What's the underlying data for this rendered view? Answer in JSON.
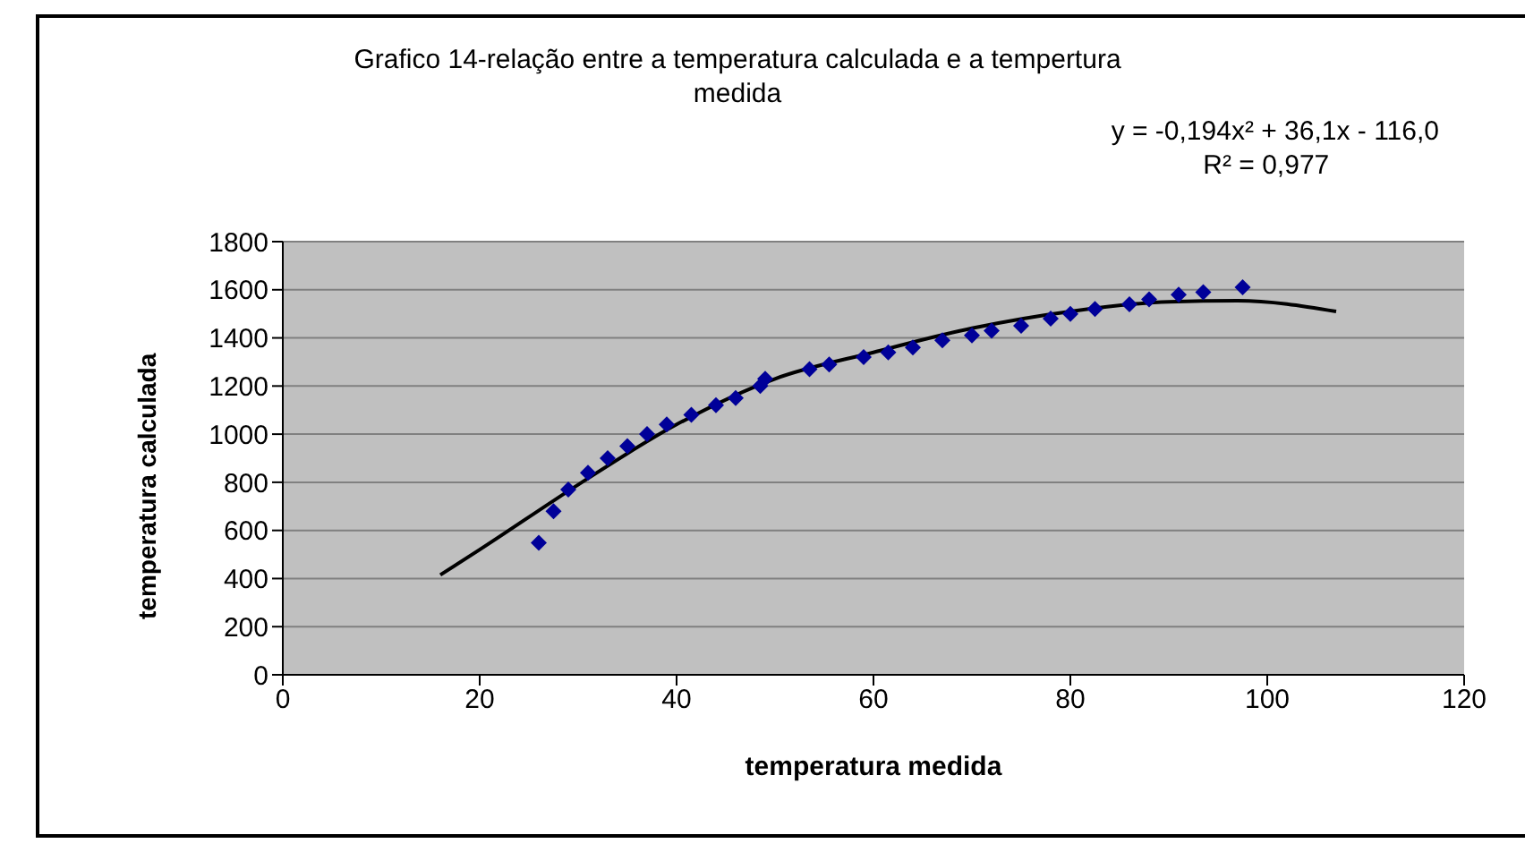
{
  "chart_data": {
    "type": "scatter",
    "title": "Grafico 14-relação entre a temperatura calculada e a tempertura medida",
    "xlabel": "temperatura medida",
    "ylabel": "temperatura calculada",
    "annotations": [
      "y = -0,194x² + 36,1x - 116,0",
      "R² = 0,977"
    ],
    "xlim": [
      0,
      120
    ],
    "xticks": [
      0,
      20,
      40,
      60,
      80,
      100,
      120
    ],
    "ylim": [
      0,
      1800
    ],
    "yticks": [
      0,
      200,
      400,
      600,
      800,
      1000,
      1200,
      1400,
      1600,
      1800
    ],
    "grid": "y",
    "legend": false,
    "series": [
      {
        "marker": "diamond",
        "color": "#000099",
        "x": [
          26,
          27.5,
          29,
          31,
          33,
          35,
          37,
          39,
          41.5,
          44,
          46,
          48.5,
          49,
          53.5,
          55.5,
          59,
          61.5,
          64,
          67,
          70,
          72,
          75,
          78,
          80,
          82.5,
          86,
          88,
          91,
          93.5,
          97.5
        ],
        "values": [
          549,
          680,
          770,
          840,
          900,
          950,
          1000,
          1040,
          1080,
          1120,
          1150,
          1200,
          1230,
          1270,
          1290,
          1320,
          1340,
          1360,
          1390,
          1410,
          1430,
          1450,
          1480,
          1500,
          1520,
          1540,
          1560,
          1580,
          1590,
          1610
        ]
      },
      {
        "type": "line",
        "marker": "none",
        "color": "#000000",
        "line_style": "solid",
        "x": [
          16,
          20,
          30,
          40,
          50,
          60,
          70,
          80,
          90,
          97,
          107
        ],
        "values": [
          415,
          520,
          790,
          1040,
          1230,
          1340,
          1440,
          1510,
          1550,
          1555,
          1510
        ]
      }
    ]
  }
}
